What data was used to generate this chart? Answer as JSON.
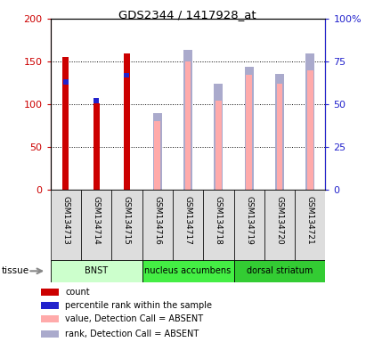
{
  "title": "GDS2344 / 1417928_at",
  "samples": [
    "GSM134713",
    "GSM134714",
    "GSM134715",
    "GSM134716",
    "GSM134717",
    "GSM134718",
    "GSM134719",
    "GSM134720",
    "GSM134721"
  ],
  "count_values": [
    155,
    101,
    159,
    null,
    null,
    null,
    null,
    null,
    null
  ],
  "rank_left_values": [
    126,
    null,
    134,
    null,
    null,
    null,
    null,
    null,
    null
  ],
  "rank_gsm714": [
    104,
    null
  ],
  "absent_value_values": [
    null,
    null,
    null,
    40,
    75,
    52,
    67,
    62,
    70
  ],
  "absent_rank_values": [
    null,
    null,
    null,
    45,
    82,
    62,
    72,
    68,
    80
  ],
  "count_color": "#cc0000",
  "rank_color": "#2222cc",
  "absent_value_color": "#ffaaaa",
  "absent_rank_color": "#aaaacc",
  "ylim_left": [
    0,
    200
  ],
  "ylim_right": [
    0,
    100
  ],
  "yticks_left": [
    0,
    50,
    100,
    150,
    200
  ],
  "yticks_right": [
    0,
    25,
    50,
    75,
    100
  ],
  "ytick_labels_left": [
    "0",
    "50",
    "100",
    "150",
    "200"
  ],
  "ytick_labels_right": [
    "0",
    "25",
    "50",
    "75",
    "100%"
  ],
  "tissue_groups": [
    {
      "label": "BNST",
      "start": 0,
      "end": 3,
      "color": "#ccffcc"
    },
    {
      "label": "nucleus accumbens",
      "start": 3,
      "end": 6,
      "color": "#44ee44"
    },
    {
      "label": "dorsal striatum",
      "start": 6,
      "end": 9,
      "color": "#33cc33"
    }
  ],
  "legend_items": [
    {
      "label": "count",
      "color": "#cc0000"
    },
    {
      "label": "percentile rank within the sample",
      "color": "#2222cc"
    },
    {
      "label": "value, Detection Call = ABSENT",
      "color": "#ffaaaa"
    },
    {
      "label": "rank, Detection Call = ABSENT",
      "color": "#aaaacc"
    }
  ],
  "bar_width": 0.5,
  "background_color": "#ffffff"
}
